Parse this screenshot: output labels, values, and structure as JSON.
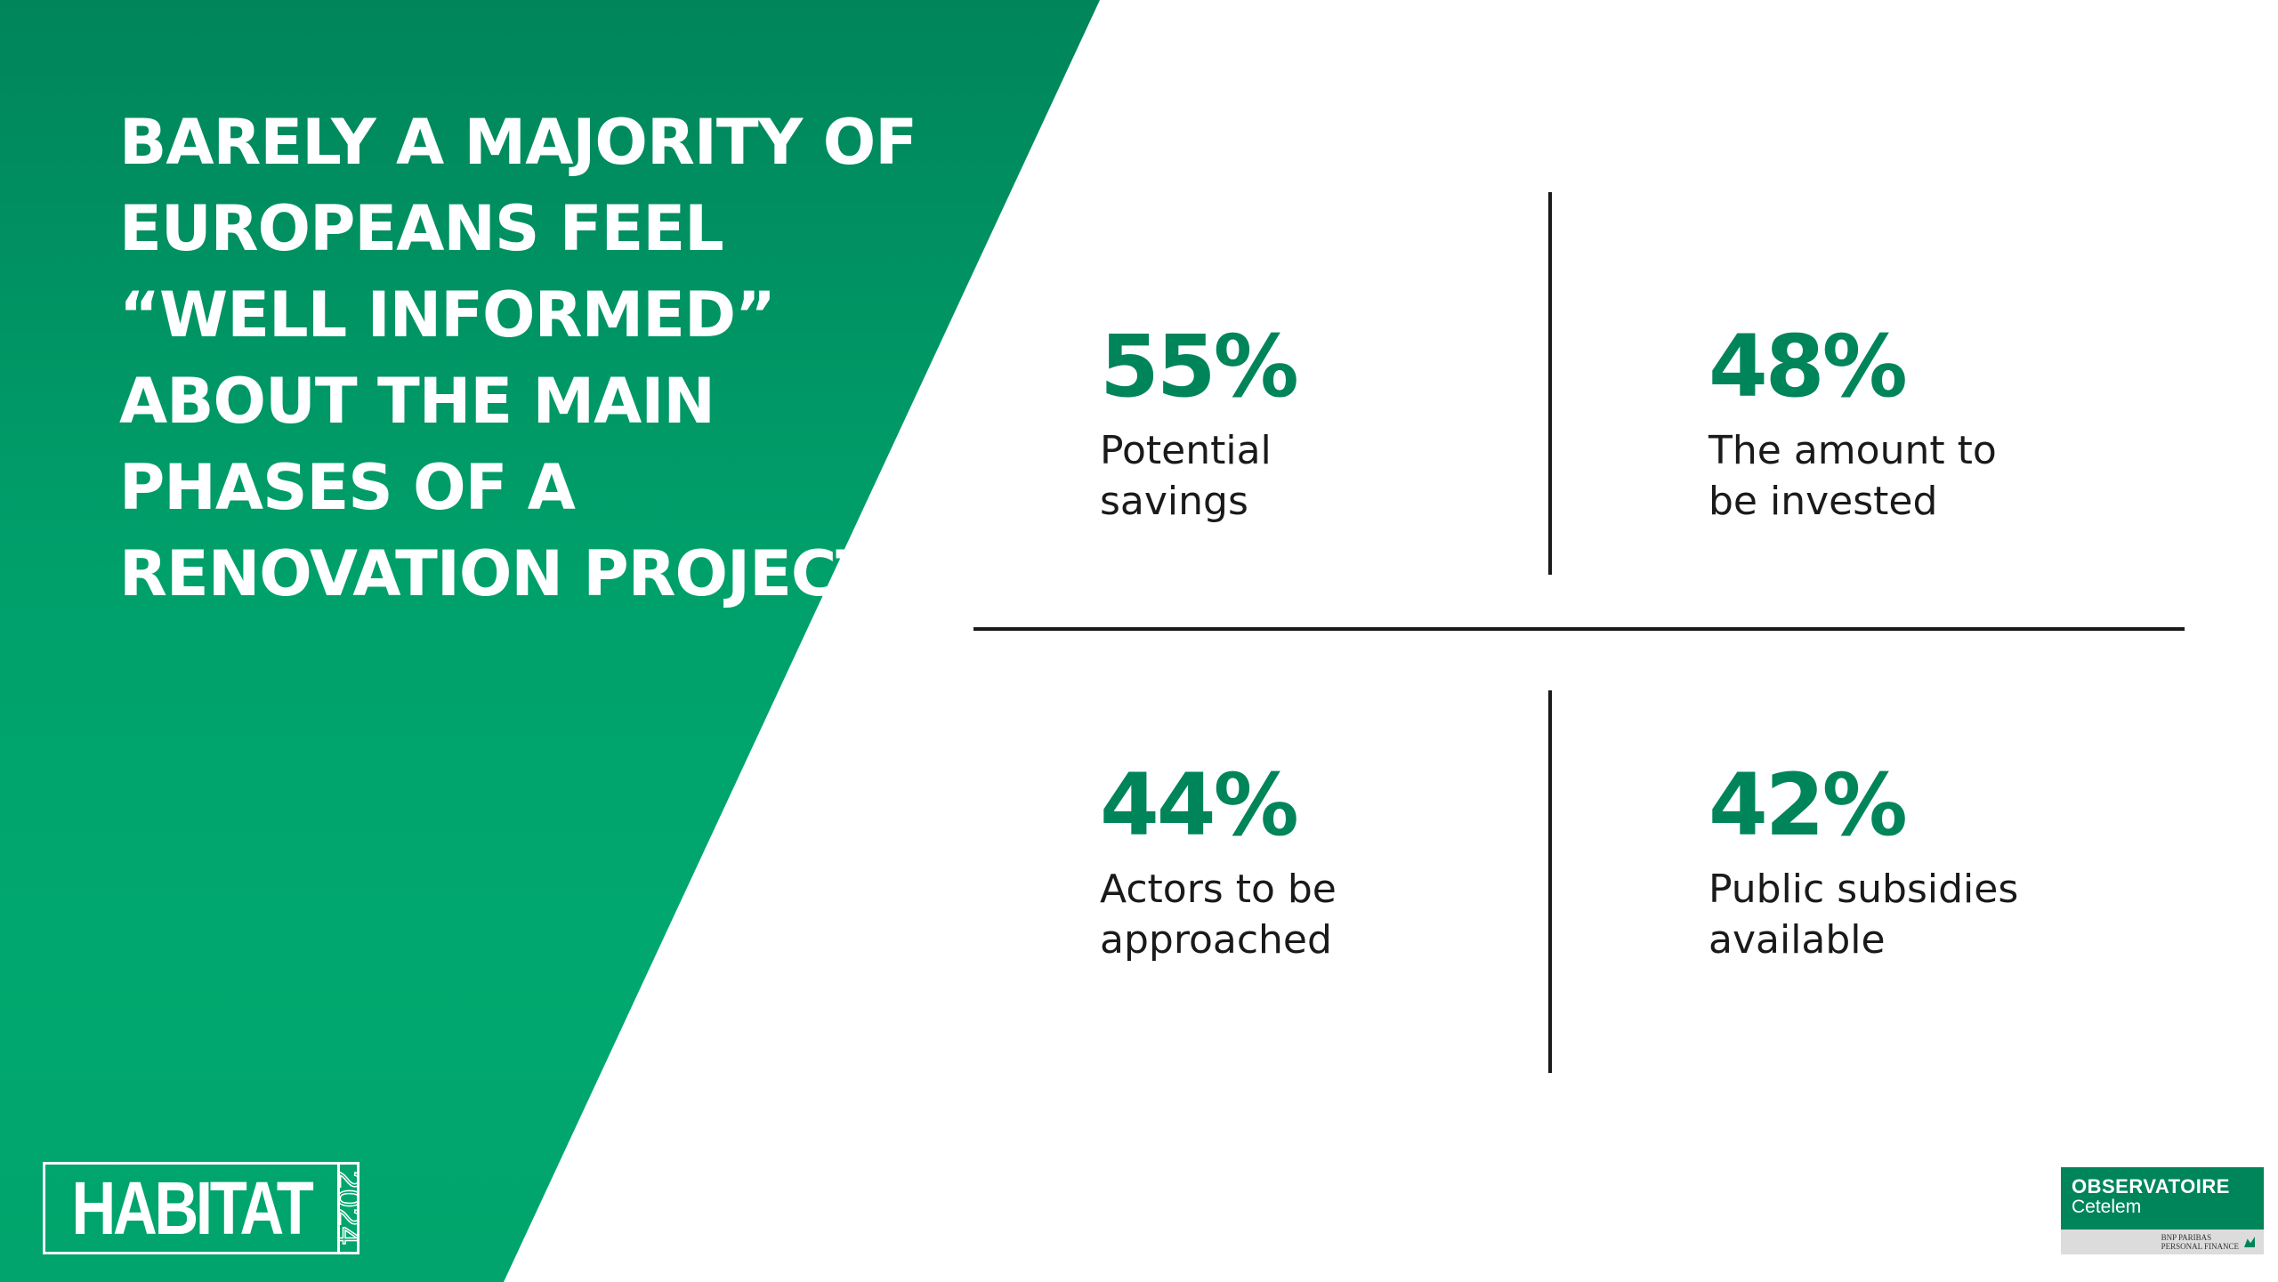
{
  "headline": {
    "lines": [
      "BARELY A MAJORITY OF",
      "EUROPEANS FEEL",
      "“WELL INFORMED”",
      "ABOUT THE MAIN",
      "PHASES OF A",
      "RENOVATION PROJECT"
    ]
  },
  "stats": [
    {
      "value": "55%",
      "label": "Potential\nsavings"
    },
    {
      "value": "48%",
      "label": "The amount to\nbe invested"
    },
    {
      "value": "44%",
      "label": "Actors to be\napproached"
    },
    {
      "value": "42%",
      "label": "Public subsidies\navailable"
    }
  ],
  "habitat_logo": {
    "word": "HABITAT",
    "year": "2024"
  },
  "observatoire_logo": {
    "title": "OBSERVATOIRE",
    "subtitle": "Cetelem",
    "bnp_line1": "BNP PARIBAS",
    "bnp_line2": "PERSONAL FINANCE"
  },
  "colors": {
    "brand_green": "#00855a",
    "text_dark": "#1a1a1a",
    "background": "#ffffff"
  }
}
